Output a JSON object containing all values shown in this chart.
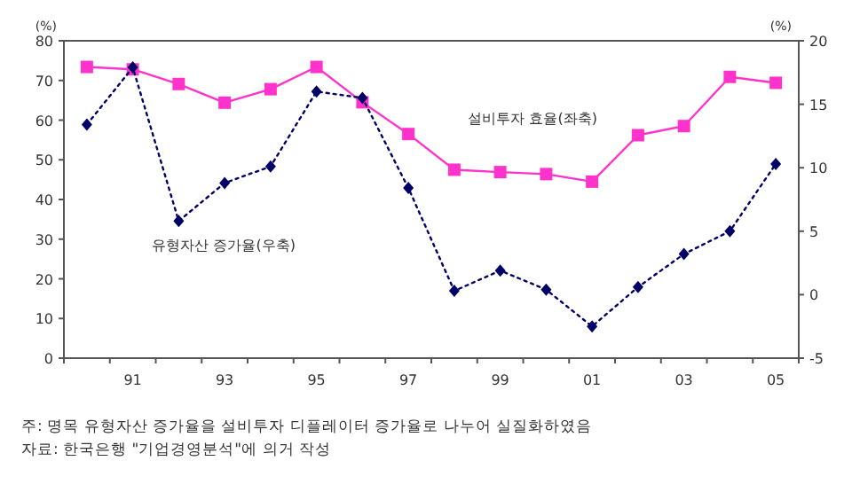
{
  "chart_data": {
    "type": "line",
    "ylabel": "(%)",
    "y2label": "(%)",
    "categories": [
      null,
      "91",
      null,
      "93",
      null,
      "95",
      null,
      "97",
      null,
      "99",
      null,
      "01",
      null,
      "03",
      null,
      "05"
    ],
    "series": [
      {
        "name": "설비투자 효율(좌축)",
        "color": "#ff33cc",
        "marker": "square",
        "line_style": "solid",
        "values": [
          73.4,
          72.8,
          69.1,
          64.4,
          67.8,
          73.4,
          64.5,
          56.5,
          47.5,
          46.9,
          46.4,
          44.5,
          56.2,
          58.5,
          70.9,
          69.4
        ]
      },
      {
        "name": "유형자산 증가율(우축)",
        "color": "#000066",
        "marker": "diamond",
        "line_style": "dotted",
        "axis": "y2",
        "values": [
          13.4,
          17.9,
          5.8,
          8.8,
          10.1,
          16.0,
          15.5,
          8.4,
          0.3,
          1.9,
          0.4,
          -2.5,
          0.6,
          3.2,
          5.0,
          10.3
        ]
      }
    ],
    "ylim": [
      0,
      80
    ],
    "yticks": [
      0,
      10,
      20,
      30,
      40,
      50,
      60,
      70,
      80
    ],
    "y2lim": [
      -5,
      20
    ],
    "y2ticks": [
      -5,
      0,
      5,
      10,
      15,
      20
    ],
    "legend": false,
    "grid": false,
    "annotations": [
      "주: 명목 유형자산 증가율을 설비투자 디플레이터 증가율로 나누어 실질화하였음",
      "자료: 한국은행 \"기업경영분석\"에 의거 작성"
    ]
  }
}
